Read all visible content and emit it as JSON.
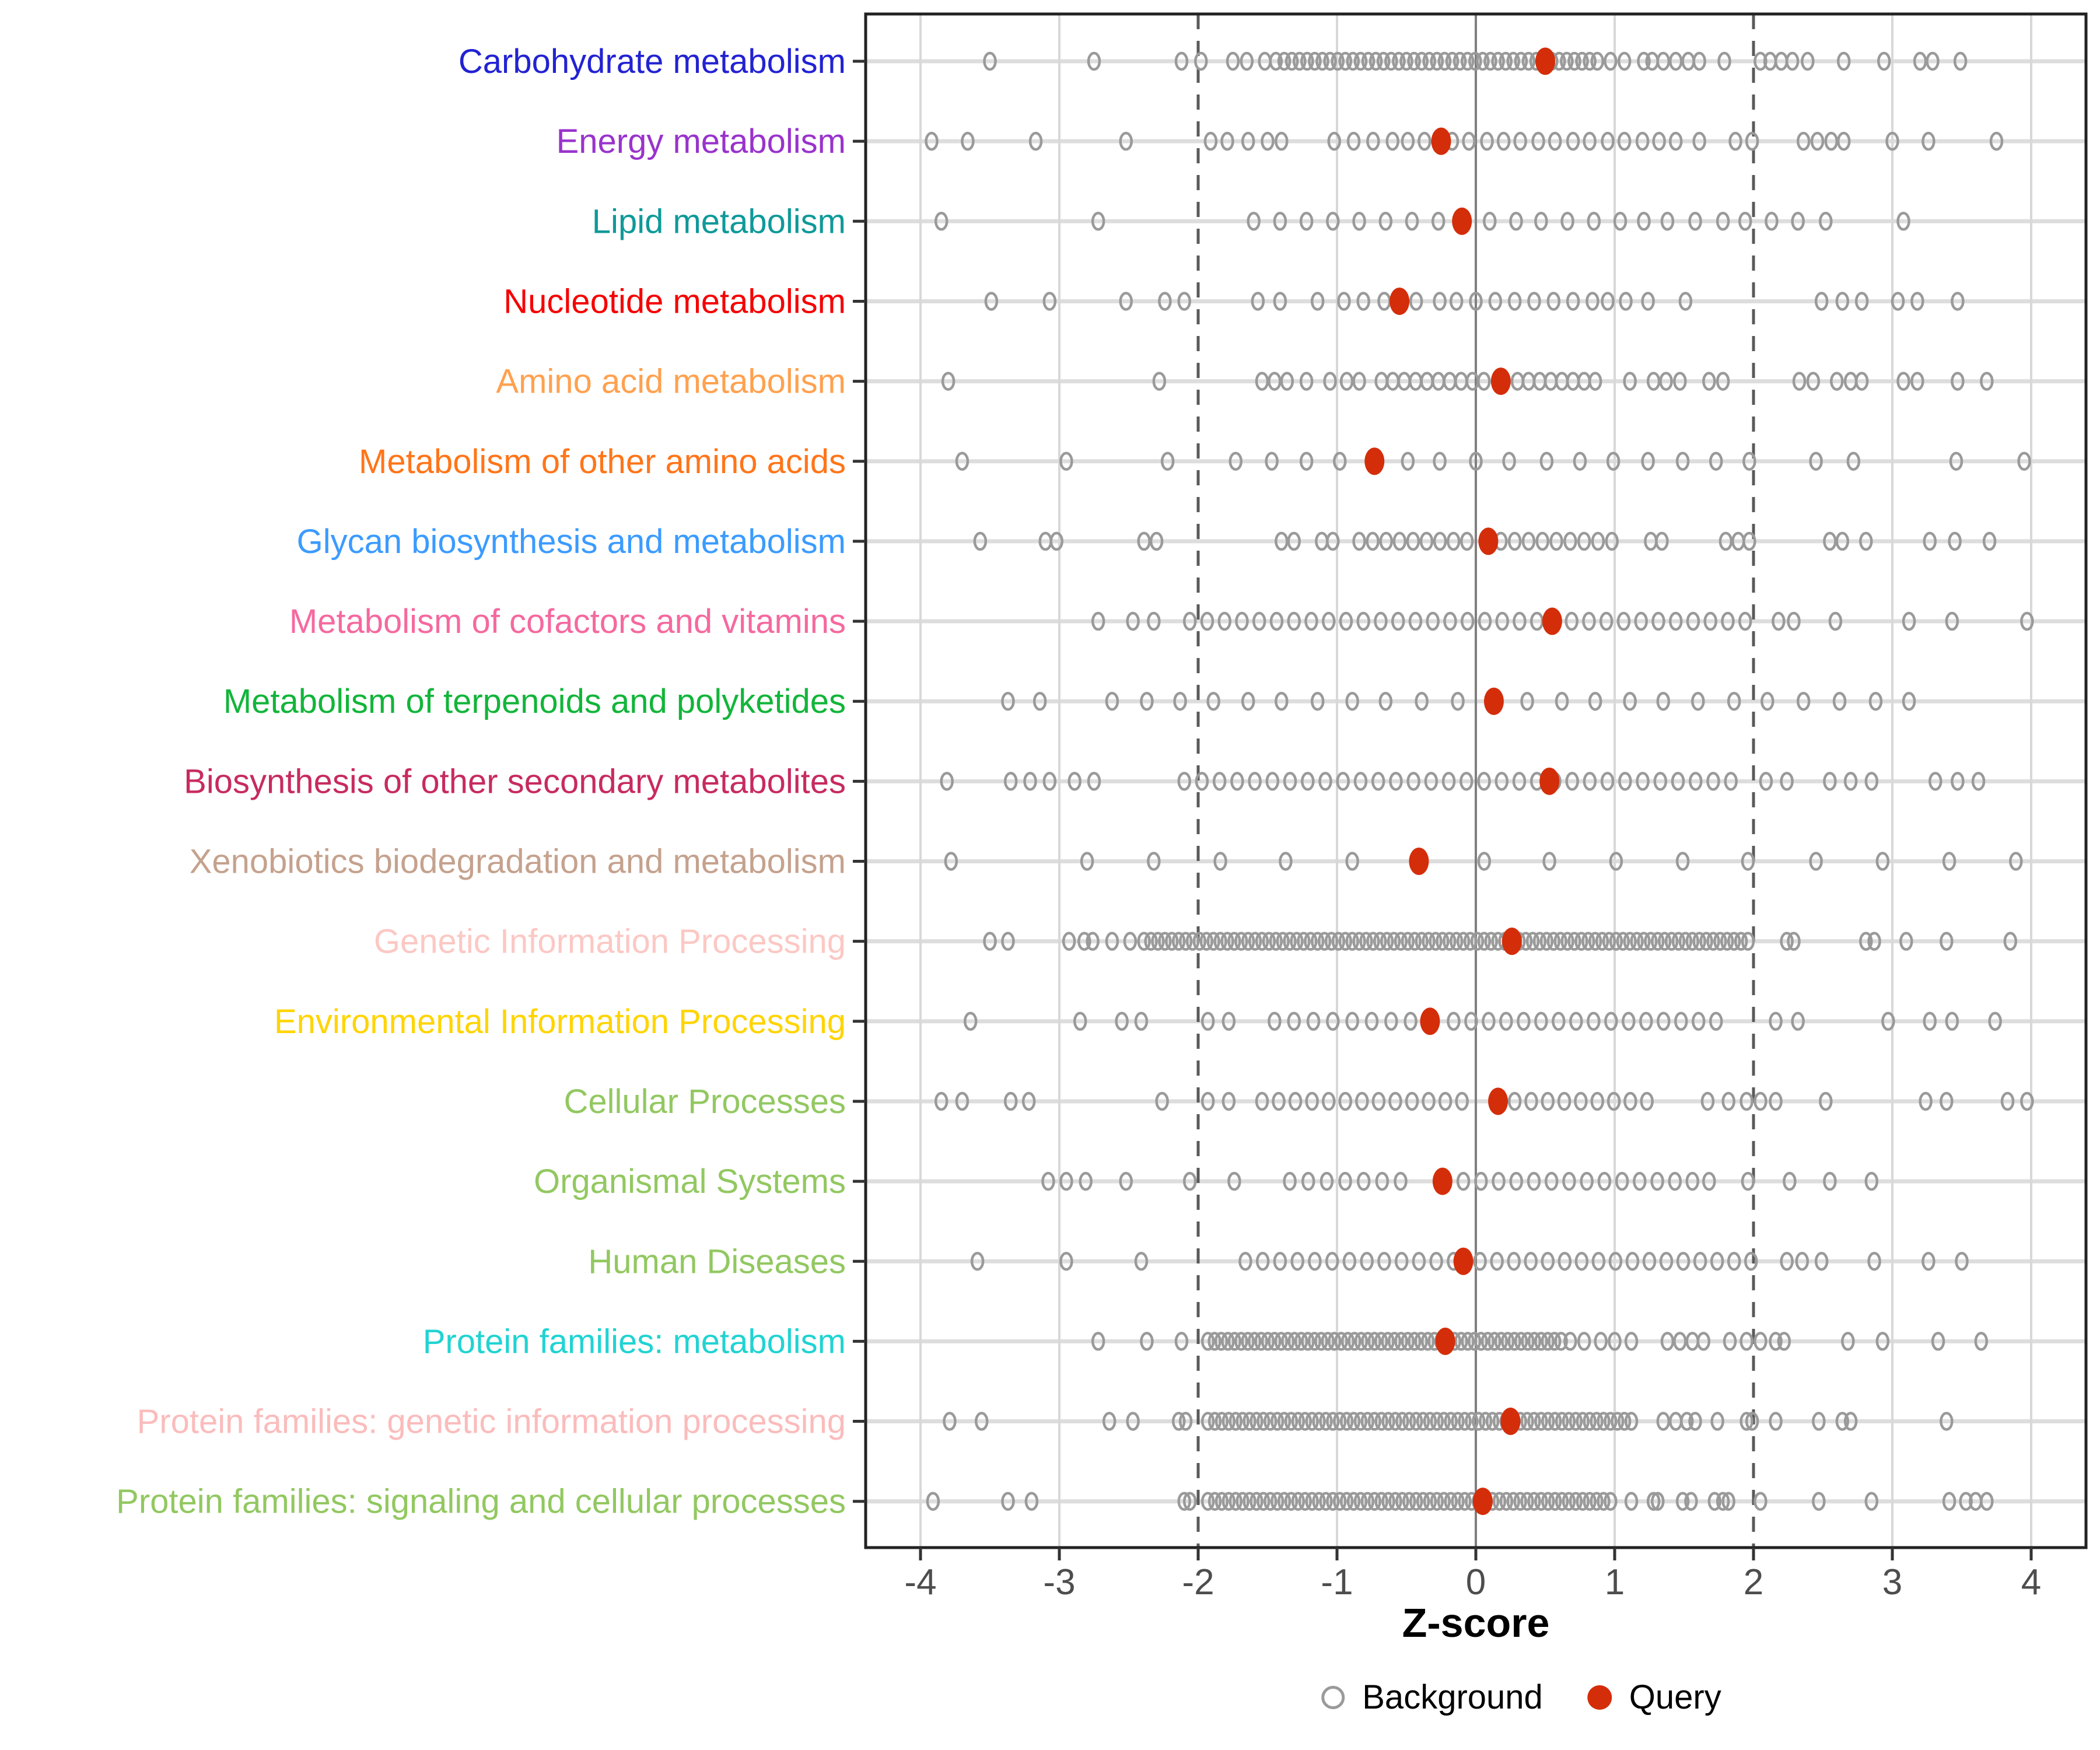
{
  "chart_data": {
    "type": "scatter",
    "title": "",
    "xlabel": "Z-score",
    "xlim": [
      -4.4,
      4.4
    ],
    "x_ticks": [
      -4,
      -3,
      -2,
      -1,
      0,
      1,
      2,
      3,
      4
    ],
    "grid": "vertical-only",
    "reference_lines": {
      "solid_at": 0,
      "dashed_at": [
        -2,
        2
      ]
    },
    "legend_position": "bottom",
    "legend": [
      {
        "label": "Background",
        "marker": "open-circle",
        "color": "#9A9A9A"
      },
      {
        "label": "Query",
        "marker": "filled-circle",
        "color": "#D42D0A"
      }
    ],
    "colors": {
      "query": "#D42D0A",
      "background_stroke": "#9A9A9A",
      "grid": "#D8D8D8",
      "zero_line": "#7F7F7F",
      "dashed_line": "#5A5A5A",
      "strip": "#DDDDDD",
      "border": "#222222",
      "tick": "#333333",
      "tick_label": "#4D4D4D"
    },
    "rows": [
      {
        "label": "Carbohydrate metabolism",
        "color": "#2222D3",
        "query": 0.5,
        "bg": [
          -3.5,
          -2.75,
          -2.12,
          -1.98,
          -1.75,
          -1.65,
          -1.52,
          -1.44,
          0.97,
          1.07,
          1.21,
          1.27,
          1.35,
          1.44,
          1.53,
          1.61,
          1.79,
          2.05,
          2.12,
          2.2,
          2.28,
          2.39,
          2.65,
          2.94,
          3.2,
          3.29,
          3.49
        ],
        "bands": [
          {
            "from": -1.38,
            "to": 0.88,
            "step": 0.055
          }
        ]
      },
      {
        "label": "Energy metabolism",
        "color": "#9933CC",
        "query": -0.25,
        "bg": [
          -3.92,
          -3.66,
          -3.17,
          -2.52,
          -1.91,
          -1.79,
          -1.64,
          -1.5,
          -1.4,
          -1.02,
          -0.88,
          -0.74,
          -0.6,
          -0.49,
          -0.37,
          -0.17,
          -0.05,
          0.08,
          0.2,
          0.32,
          0.45,
          0.57,
          0.7,
          0.82,
          0.95,
          1.07,
          1.2,
          1.32,
          1.44,
          1.61,
          1.87,
          1.99,
          2.36,
          2.46,
          2.56,
          2.65,
          3.0,
          3.26,
          3.75
        ],
        "bands": []
      },
      {
        "label": "Lipid metabolism",
        "color": "#0F9999",
        "query": -0.1,
        "bg": [
          -3.85,
          -2.72,
          -1.6,
          -1.41,
          -1.22,
          -1.03,
          -0.84,
          -0.65,
          -0.46,
          -0.27,
          0.1,
          0.29,
          0.47,
          0.66,
          0.85,
          1.04,
          1.21,
          1.38,
          1.58,
          1.78,
          1.94,
          2.13,
          2.32,
          2.52,
          3.08
        ],
        "bands": []
      },
      {
        "label": "Nucleotide metabolism",
        "color": "#F50000",
        "query": -0.55,
        "bg": [
          -3.49,
          -3.07,
          -2.52,
          -2.24,
          -2.1,
          -1.57,
          -1.41,
          -1.14,
          -0.95,
          -0.81,
          -0.66,
          -0.43,
          -0.26,
          -0.14,
          0.0,
          0.14,
          0.28,
          0.42,
          0.56,
          0.7,
          0.84,
          0.95,
          1.08,
          1.24,
          1.51,
          2.49,
          2.64,
          2.78,
          3.04,
          3.18,
          3.47
        ],
        "bands": []
      },
      {
        "label": "Amino acid metabolism",
        "color": "#FFA14F",
        "query": 0.18,
        "bg": [
          -3.8,
          -2.28,
          -1.54,
          -1.45,
          -1.36,
          -1.22,
          -1.05,
          -0.93,
          -0.84,
          1.11,
          1.28,
          1.37,
          1.47,
          1.68,
          1.78,
          2.33,
          2.43,
          2.6,
          2.7,
          2.78,
          3.08,
          3.18,
          3.47,
          3.68
        ],
        "bands": [
          {
            "from": -0.68,
            "to": 0.06,
            "step": 0.082
          },
          {
            "from": 0.3,
            "to": 0.86,
            "step": 0.08
          }
        ]
      },
      {
        "label": "Metabolism of other amino acids",
        "color": "#FF7519",
        "query": -0.73,
        "bg": [
          -3.7,
          -2.95,
          -2.22,
          -1.73,
          -1.47,
          -1.22,
          -0.98,
          -0.49,
          -0.26,
          0.0,
          0.24,
          0.51,
          0.75,
          0.99,
          1.24,
          1.49,
          1.73,
          1.97,
          2.45,
          2.72,
          3.46,
          3.95
        ],
        "bands": []
      },
      {
        "label": "Glycan biosynthesis and metabolism",
        "color": "#3B9BFF",
        "query": 0.09,
        "bg": [
          -3.57,
          -3.1,
          -3.02,
          -2.39,
          -2.3,
          -1.4,
          -1.31,
          -1.11,
          -1.03,
          1.26,
          1.34,
          1.8,
          1.89,
          1.97,
          2.55,
          2.64,
          2.81,
          3.27,
          3.45,
          3.7
        ],
        "bands": [
          {
            "from": -0.84,
            "to": -0.06,
            "step": 0.097
          },
          {
            "from": 0.18,
            "to": 0.99,
            "step": 0.1
          }
        ]
      },
      {
        "label": "Metabolism of cofactors and vitamins",
        "color": "#F5699F",
        "query": 0.55,
        "bg": [
          -2.72,
          -2.47,
          -2.32,
          2.18,
          2.29,
          2.59,
          3.12,
          3.43,
          3.97
        ],
        "bands": [
          {
            "from": -2.06,
            "to": 1.96,
            "step": 0.125
          }
        ]
      },
      {
        "label": "Metabolism of terpenoids and polyketides",
        "color": "#12B53A",
        "query": 0.13,
        "bg": [
          -3.37,
          -3.14,
          -2.62,
          -2.37,
          -2.13,
          -1.89,
          -1.64,
          -1.4,
          -1.14,
          -0.89,
          -0.65,
          -0.39,
          -0.13,
          0.37,
          0.62,
          0.86,
          1.11,
          1.35,
          1.6,
          1.86,
          2.1,
          2.36,
          2.62,
          2.88,
          3.12
        ],
        "bands": []
      },
      {
        "label": "Biosynthesis of other secondary metabolites",
        "color": "#C72B60",
        "query": 0.53,
        "bg": [
          -3.81,
          -3.35,
          -3.21,
          -3.07,
          -2.89,
          -2.75,
          2.09,
          2.24,
          2.55,
          2.7,
          2.85,
          3.31,
          3.47,
          3.62
        ],
        "bands": [
          {
            "from": -2.1,
            "to": 1.96,
            "step": 0.127
          }
        ]
      },
      {
        "label": "Xenobiotics biodegradation and metabolism",
        "color": "#C5A28E",
        "query": -0.41,
        "bg": [
          -3.78,
          -2.8,
          -2.32,
          -1.84,
          -1.37,
          -0.89,
          0.06,
          0.53,
          1.01,
          1.49,
          1.96,
          2.45,
          2.93,
          3.41,
          3.89
        ],
        "bands": []
      },
      {
        "label": "Genetic Information Processing",
        "color": "#FCC8C4",
        "query": 0.26,
        "bg": [
          -3.5,
          -3.37,
          -2.93,
          -2.82,
          -2.76,
          -2.62,
          -2.49,
          2.24,
          2.29,
          2.81,
          2.87,
          3.1,
          3.39,
          3.85
        ],
        "bands": [
          {
            "from": -2.39,
            "to": 1.99,
            "step": 0.05
          }
        ]
      },
      {
        "label": "Environmental Information Processing",
        "color": "#FFD400",
        "query": -0.33,
        "bg": [
          -3.64,
          -2.85,
          -2.55,
          -2.41,
          -1.93,
          -1.78,
          2.16,
          2.32,
          2.97,
          3.27,
          3.43,
          3.74
        ],
        "bands": [
          {
            "from": -1.45,
            "to": -0.47,
            "step": 0.14
          },
          {
            "from": -0.16,
            "to": 1.73,
            "step": 0.126
          }
        ]
      },
      {
        "label": "Cellular Processes",
        "color": "#92C861",
        "query": 0.16,
        "bg": [
          -3.85,
          -3.7,
          -3.35,
          -3.22,
          -2.26,
          -1.93,
          -1.78,
          1.67,
          1.82,
          1.95,
          2.05,
          2.16,
          2.52,
          3.24,
          3.39,
          3.83,
          3.97
        ],
        "bands": [
          {
            "from": -1.54,
            "to": -0.1,
            "step": 0.12
          },
          {
            "from": 0.28,
            "to": 1.35,
            "step": 0.119
          }
        ]
      },
      {
        "label": "Organismal Systems",
        "color": "#92C861",
        "query": -0.24,
        "bg": [
          -3.08,
          -2.95,
          -2.81,
          -2.52,
          -2.06,
          -1.74,
          1.56,
          1.68,
          1.96,
          2.26,
          2.55,
          2.85
        ],
        "bands": [
          {
            "from": -1.34,
            "to": -0.41,
            "step": 0.133
          },
          {
            "from": -0.09,
            "to": 1.44,
            "step": 0.127
          }
        ]
      },
      {
        "label": "Human Diseases",
        "color": "#92C861",
        "query": -0.09,
        "bg": [
          -3.59,
          -2.95,
          -2.41,
          2.24,
          2.35,
          2.49,
          2.87,
          3.26,
          3.5
        ],
        "bands": [
          {
            "from": -1.66,
            "to": -0.16,
            "step": 0.125
          },
          {
            "from": 0.03,
            "to": 1.99,
            "step": 0.122
          }
        ]
      },
      {
        "label": "Protein families: metabolism",
        "color": "#21D3D3",
        "query": -0.22,
        "bg": [
          -2.72,
          -2.37,
          -2.12,
          0.68,
          0.78,
          0.9,
          1.0,
          1.12,
          1.38,
          1.47,
          1.56,
          1.64,
          1.83,
          1.95,
          2.05,
          2.16,
          2.22,
          2.68,
          2.93,
          3.33,
          3.64
        ],
        "bands": [
          {
            "from": -1.93,
            "to": 0.63,
            "step": 0.048
          }
        ]
      },
      {
        "label": "Protein families: genetic information processing",
        "color": "#FBBCBC",
        "query": 0.25,
        "bg": [
          -3.79,
          -3.56,
          -2.64,
          -2.47,
          -2.14,
          -2.09,
          1.35,
          1.44,
          1.52,
          1.58,
          1.74,
          1.95,
          1.99,
          2.16,
          2.47,
          2.64,
          2.7,
          3.39
        ],
        "bands": [
          {
            "from": -1.93,
            "to": 1.15,
            "step": 0.05
          }
        ]
      },
      {
        "label": "Protein families: signaling and cellular processes",
        "color": "#92C861",
        "query": 0.05,
        "bg": [
          -3.91,
          -3.37,
          -3.2,
          -2.1,
          -2.06,
          1.12,
          1.28,
          1.31,
          1.49,
          1.55,
          1.72,
          1.78,
          1.82,
          2.05,
          2.47,
          2.85,
          3.41,
          3.53,
          3.6,
          3.68
        ],
        "bands": [
          {
            "from": -1.93,
            "to": 0.98,
            "step": 0.05
          }
        ]
      }
    ]
  }
}
